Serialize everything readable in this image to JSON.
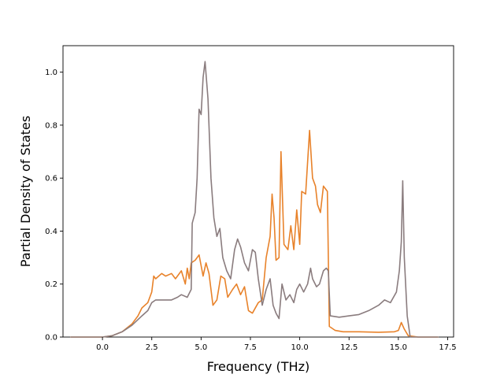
{
  "chart_data": {
    "type": "line",
    "title": "",
    "xlabel": "Frequency (THz)",
    "ylabel": "Partial Density of States",
    "xlim": [
      -2.0,
      17.8
    ],
    "ylim": [
      0.0,
      1.1
    ],
    "xticks": [
      0.0,
      2.5,
      5.0,
      7.5,
      10.0,
      12.5,
      15.0,
      17.5
    ],
    "xtick_labels": [
      "0.0",
      "2.5",
      "5.0",
      "7.5",
      "10.0",
      "12.5",
      "15.0",
      "17.5"
    ],
    "yticks": [
      0.0,
      0.2,
      0.4,
      0.6,
      0.8,
      1.0
    ],
    "ytick_labels": [
      "0.0",
      "0.2",
      "0.4",
      "0.6",
      "0.8",
      "1.0"
    ],
    "grid": false,
    "legend": "none",
    "series": [
      {
        "color": "#e8822a",
        "points": [
          [
            -1.6,
            0.0
          ],
          [
            0.0,
            0.0
          ],
          [
            0.5,
            0.005
          ],
          [
            1.0,
            0.02
          ],
          [
            1.5,
            0.05
          ],
          [
            1.8,
            0.08
          ],
          [
            2.0,
            0.11
          ],
          [
            2.3,
            0.13
          ],
          [
            2.5,
            0.17
          ],
          [
            2.6,
            0.23
          ],
          [
            2.7,
            0.22
          ],
          [
            3.0,
            0.24
          ],
          [
            3.2,
            0.23
          ],
          [
            3.5,
            0.24
          ],
          [
            3.7,
            0.22
          ],
          [
            4.0,
            0.25
          ],
          [
            4.2,
            0.2
          ],
          [
            4.3,
            0.26
          ],
          [
            4.4,
            0.22
          ],
          [
            4.5,
            0.28
          ],
          [
            4.7,
            0.29
          ],
          [
            4.9,
            0.31
          ],
          [
            5.1,
            0.23
          ],
          [
            5.25,
            0.28
          ],
          [
            5.4,
            0.24
          ],
          [
            5.6,
            0.12
          ],
          [
            5.8,
            0.14
          ],
          [
            6.0,
            0.23
          ],
          [
            6.2,
            0.22
          ],
          [
            6.35,
            0.15
          ],
          [
            6.6,
            0.18
          ],
          [
            6.8,
            0.2
          ],
          [
            7.0,
            0.16
          ],
          [
            7.2,
            0.19
          ],
          [
            7.4,
            0.1
          ],
          [
            7.6,
            0.09
          ],
          [
            7.9,
            0.13
          ],
          [
            8.1,
            0.14
          ],
          [
            8.3,
            0.3
          ],
          [
            8.5,
            0.38
          ],
          [
            8.6,
            0.54
          ],
          [
            8.7,
            0.45
          ],
          [
            8.8,
            0.29
          ],
          [
            8.95,
            0.3
          ],
          [
            9.05,
            0.7
          ],
          [
            9.2,
            0.35
          ],
          [
            9.4,
            0.33
          ],
          [
            9.55,
            0.42
          ],
          [
            9.7,
            0.33
          ],
          [
            9.85,
            0.48
          ],
          [
            10.0,
            0.35
          ],
          [
            10.1,
            0.55
          ],
          [
            10.3,
            0.54
          ],
          [
            10.5,
            0.78
          ],
          [
            10.65,
            0.6
          ],
          [
            10.8,
            0.57
          ],
          [
            10.9,
            0.5
          ],
          [
            11.05,
            0.47
          ],
          [
            11.2,
            0.57
          ],
          [
            11.4,
            0.55
          ],
          [
            11.5,
            0.04
          ],
          [
            11.8,
            0.025
          ],
          [
            12.2,
            0.02
          ],
          [
            13.0,
            0.02
          ],
          [
            14.0,
            0.018
          ],
          [
            14.8,
            0.02
          ],
          [
            15.0,
            0.025
          ],
          [
            15.15,
            0.055
          ],
          [
            15.3,
            0.03
          ],
          [
            15.5,
            0.005
          ],
          [
            16.0,
            0.0
          ],
          [
            17.0,
            0.0
          ]
        ]
      },
      {
        "color": "#8a7c7e",
        "points": [
          [
            -1.6,
            0.0
          ],
          [
            0.0,
            0.0
          ],
          [
            0.5,
            0.005
          ],
          [
            1.0,
            0.02
          ],
          [
            1.5,
            0.045
          ],
          [
            2.0,
            0.08
          ],
          [
            2.3,
            0.1
          ],
          [
            2.5,
            0.13
          ],
          [
            2.7,
            0.14
          ],
          [
            3.0,
            0.14
          ],
          [
            3.5,
            0.14
          ],
          [
            3.8,
            0.15
          ],
          [
            4.0,
            0.16
          ],
          [
            4.3,
            0.15
          ],
          [
            4.5,
            0.18
          ],
          [
            4.55,
            0.43
          ],
          [
            4.7,
            0.47
          ],
          [
            4.8,
            0.6
          ],
          [
            4.9,
            0.86
          ],
          [
            5.0,
            0.84
          ],
          [
            5.1,
            0.98
          ],
          [
            5.2,
            1.04
          ],
          [
            5.35,
            0.9
          ],
          [
            5.5,
            0.6
          ],
          [
            5.65,
            0.45
          ],
          [
            5.8,
            0.38
          ],
          [
            5.95,
            0.41
          ],
          [
            6.1,
            0.3
          ],
          [
            6.3,
            0.25
          ],
          [
            6.5,
            0.22
          ],
          [
            6.7,
            0.33
          ],
          [
            6.85,
            0.37
          ],
          [
            7.0,
            0.34
          ],
          [
            7.2,
            0.28
          ],
          [
            7.4,
            0.25
          ],
          [
            7.6,
            0.33
          ],
          [
            7.75,
            0.32
          ],
          [
            7.9,
            0.22
          ],
          [
            8.1,
            0.12
          ],
          [
            8.3,
            0.18
          ],
          [
            8.5,
            0.22
          ],
          [
            8.65,
            0.12
          ],
          [
            8.8,
            0.09
          ],
          [
            8.95,
            0.07
          ],
          [
            9.1,
            0.2
          ],
          [
            9.3,
            0.14
          ],
          [
            9.5,
            0.16
          ],
          [
            9.7,
            0.13
          ],
          [
            9.85,
            0.18
          ],
          [
            10.0,
            0.2
          ],
          [
            10.2,
            0.17
          ],
          [
            10.4,
            0.2
          ],
          [
            10.55,
            0.26
          ],
          [
            10.65,
            0.22
          ],
          [
            10.85,
            0.19
          ],
          [
            11.0,
            0.2
          ],
          [
            11.2,
            0.25
          ],
          [
            11.35,
            0.26
          ],
          [
            11.45,
            0.25
          ],
          [
            11.55,
            0.08
          ],
          [
            12.0,
            0.075
          ],
          [
            12.5,
            0.08
          ],
          [
            13.0,
            0.085
          ],
          [
            13.5,
            0.1
          ],
          [
            14.0,
            0.12
          ],
          [
            14.3,
            0.14
          ],
          [
            14.6,
            0.13
          ],
          [
            14.9,
            0.17
          ],
          [
            15.05,
            0.25
          ],
          [
            15.15,
            0.36
          ],
          [
            15.22,
            0.59
          ],
          [
            15.3,
            0.3
          ],
          [
            15.45,
            0.08
          ],
          [
            15.6,
            0.0
          ],
          [
            16.0,
            0.0
          ],
          [
            17.0,
            0.0
          ]
        ]
      }
    ]
  }
}
